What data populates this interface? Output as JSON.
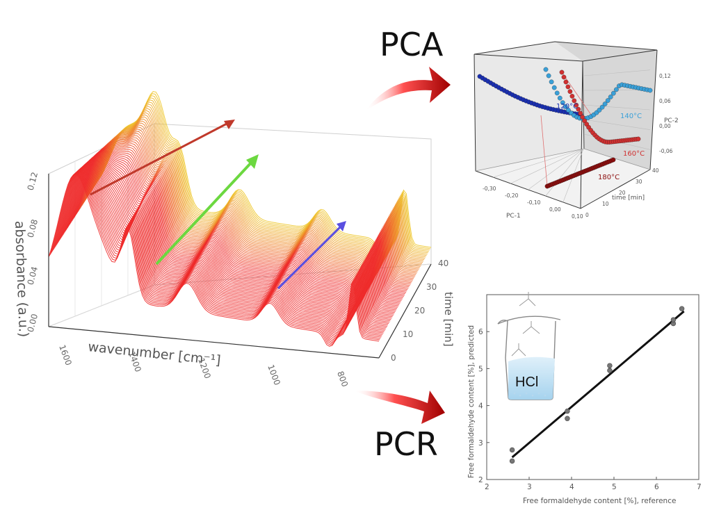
{
  "labels": {
    "pca": "PCA",
    "pcr": "PCR",
    "hcl": "HCl"
  },
  "spectra": {
    "ylabel": "absorbance (a.u.)",
    "xlabel": "wavenumber [cm⁻¹]",
    "zlabel": "time [min]",
    "yticks": [
      "0.00",
      "0.04",
      "0.08",
      "0.12"
    ],
    "xticks": [
      "1600",
      "1400",
      "1200",
      "1000",
      "800"
    ],
    "zticks": [
      "0",
      "10",
      "20",
      "30",
      "40"
    ]
  },
  "pca_plot": {
    "xlabel": "PC-1",
    "ylabel": "time [min]",
    "zlabel": "PC-2",
    "xticks": [
      "-0,30",
      "-0,20",
      "-0,10",
      "0,00",
      "0,10"
    ],
    "yticks": [
      "0",
      "10",
      "20",
      "30",
      "40"
    ],
    "zticks": [
      "0,12",
      "0,06",
      "0,00",
      "-0,06"
    ],
    "temperatures": [
      "120°C",
      "140°C",
      "160°C",
      "180°C"
    ],
    "colors": [
      "#1a2fb0",
      "#3aa0d8",
      "#d03030",
      "#8b0d0d"
    ]
  },
  "chart_data": {
    "type": "scatter",
    "xlabel": "Free formaldehyde content [%], reference",
    "ylabel": "Free formaldehyde content [%], predicted",
    "xlim": [
      2,
      7
    ],
    "ylim": [
      2,
      7
    ],
    "xticks": [
      "2",
      "3",
      "4",
      "5",
      "6",
      "7"
    ],
    "yticks": [
      "2",
      "3",
      "4",
      "5",
      "6"
    ],
    "points": [
      {
        "x": 2.6,
        "y": 2.5
      },
      {
        "x": 2.6,
        "y": 2.8
      },
      {
        "x": 3.9,
        "y": 3.65
      },
      {
        "x": 3.9,
        "y": 3.85
      },
      {
        "x": 4.9,
        "y": 4.95
      },
      {
        "x": 4.9,
        "y": 5.08
      },
      {
        "x": 6.4,
        "y": 6.22
      },
      {
        "x": 6.4,
        "y": 6.32
      },
      {
        "x": 6.6,
        "y": 6.62
      }
    ],
    "fit_line": {
      "x": [
        2.6,
        6.65
      ],
      "y": [
        2.6,
        6.55
      ]
    }
  }
}
